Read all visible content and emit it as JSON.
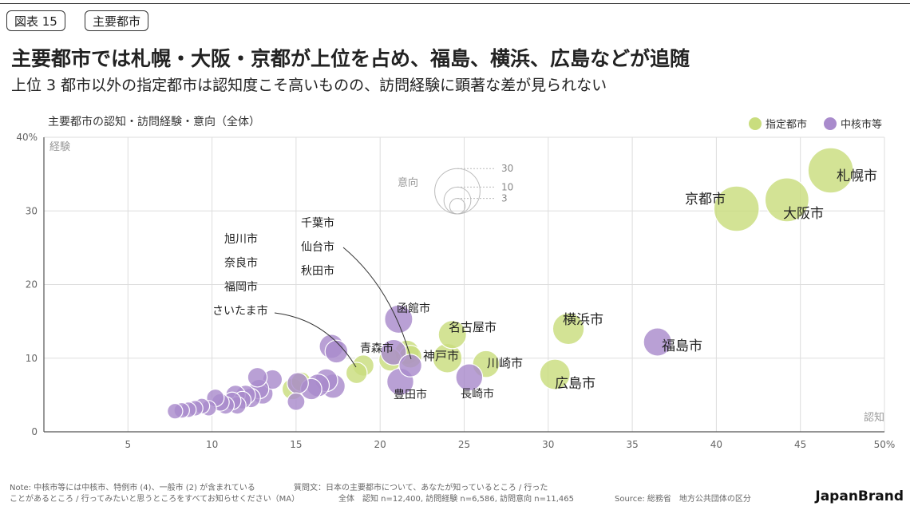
{
  "tags": {
    "figure": "図表 15",
    "section": "主要都市"
  },
  "title": "主要都市では札幌・大阪・京都が上位を占め、福島、横浜、広島などが追随",
  "subtitle": "上位 3 都市以外の指定都市は認知度こそ高いものの、訪問経験に顕著な差が見られない",
  "colors": {
    "designated": "#c9dd7e",
    "core": "#a98bcc",
    "grid": "#dddddd"
  },
  "chart_data": {
    "type": "scatter",
    "title": "主要都市の認知・訪問経験・意向（全体）",
    "xlabel": "認知",
    "ylabel": "経験",
    "size_label": "意向",
    "size_legend": [
      30,
      10,
      3
    ],
    "xlim": [
      0,
      50
    ],
    "ylim": [
      0,
      40
    ],
    "x_ticks": [
      "5",
      "10",
      "15",
      "20",
      "25",
      "30",
      "35",
      "40",
      "45",
      "50%"
    ],
    "y_ticks": [
      "0",
      "10",
      "20",
      "30",
      "40%"
    ],
    "grid": true,
    "legend_position": "top-right",
    "series": [
      {
        "name": "指定都市",
        "points": [
          {
            "label": "札幌市",
            "x": 46.8,
            "y": 35.5,
            "size": 30
          },
          {
            "label": "大阪市",
            "x": 44.2,
            "y": 31.5,
            "size": 28
          },
          {
            "label": "京都市",
            "x": 41.2,
            "y": 30.3,
            "size": 30
          },
          {
            "label": "横浜市",
            "x": 31.2,
            "y": 14.0,
            "size": 14
          },
          {
            "label": "広島市",
            "x": 30.4,
            "y": 7.8,
            "size": 13
          },
          {
            "label": "名古屋市",
            "x": 24.3,
            "y": 13.2,
            "size": 11
          },
          {
            "label": "川崎市",
            "x": 26.3,
            "y": 9.2,
            "size": 10
          },
          {
            "label": "神戸市",
            "x": 24.0,
            "y": 10.0,
            "size": 12
          },
          {
            "label": "千葉市",
            "x": 21.6,
            "y": 10.8,
            "size": 8
          },
          {
            "label": "仙台市",
            "x": 21.8,
            "y": 10.2,
            "size": 7
          },
          {
            "label": "",
            "x": 20.6,
            "y": 9.8,
            "size": 7
          },
          {
            "label": "",
            "x": 19.0,
            "y": 9.0,
            "size": 6
          },
          {
            "label": "",
            "x": 18.6,
            "y": 8.0,
            "size": 6
          },
          {
            "label": "",
            "x": 15.3,
            "y": 6.8,
            "size": 5
          },
          {
            "label": "",
            "x": 14.8,
            "y": 5.8,
            "size": 6
          }
        ]
      },
      {
        "name": "中核市等",
        "points": [
          {
            "label": "福島市",
            "x": 36.5,
            "y": 12.2,
            "size": 11
          },
          {
            "label": "函館市",
            "x": 21.1,
            "y": 15.3,
            "size": 11
          },
          {
            "label": "豊田市",
            "x": 21.2,
            "y": 6.8,
            "size": 10
          },
          {
            "label": "長崎市",
            "x": 25.3,
            "y": 7.4,
            "size": 10
          },
          {
            "label": "青森市",
            "x": 20.8,
            "y": 10.8,
            "size": 9
          },
          {
            "label": "秋田市",
            "x": 21.8,
            "y": 9.0,
            "size": 7
          },
          {
            "label": "旭川市",
            "x": 17.4,
            "y": 10.9,
            "size": 7
          },
          {
            "label": "奈良市",
            "x": 17.1,
            "y": 11.6,
            "size": 8
          },
          {
            "label": "",
            "x": 17.2,
            "y": 6.2,
            "size": 8
          },
          {
            "label": "",
            "x": 16.8,
            "y": 7.0,
            "size": 7
          },
          {
            "label": "",
            "x": 16.3,
            "y": 6.3,
            "size": 7
          },
          {
            "label": "",
            "x": 15.9,
            "y": 5.8,
            "size": 6
          },
          {
            "label": "",
            "x": 15.0,
            "y": 4.1,
            "size": 4
          },
          {
            "label": "",
            "x": 15.1,
            "y": 6.6,
            "size": 6
          },
          {
            "label": "",
            "x": 13.6,
            "y": 7.1,
            "size": 5
          },
          {
            "label": "",
            "x": 13.0,
            "y": 5.2,
            "size": 6
          },
          {
            "label": "",
            "x": 12.8,
            "y": 5.8,
            "size": 5
          },
          {
            "label": "",
            "x": 12.7,
            "y": 7.4,
            "size": 5
          },
          {
            "label": "",
            "x": 12.3,
            "y": 4.6,
            "size": 5
          },
          {
            "label": "",
            "x": 12.0,
            "y": 5.0,
            "size": 5
          },
          {
            "label": "",
            "x": 11.8,
            "y": 4.3,
            "size": 4
          },
          {
            "label": "",
            "x": 11.4,
            "y": 5.0,
            "size": 5
          },
          {
            "label": "",
            "x": 11.5,
            "y": 3.6,
            "size": 4
          },
          {
            "label": "",
            "x": 11.2,
            "y": 4.2,
            "size": 4
          },
          {
            "label": "",
            "x": 10.8,
            "y": 3.6,
            "size": 4
          },
          {
            "label": "",
            "x": 10.5,
            "y": 4.0,
            "size": 4
          },
          {
            "label": "",
            "x": 10.2,
            "y": 4.6,
            "size": 4
          },
          {
            "label": "",
            "x": 9.8,
            "y": 3.2,
            "size": 3
          },
          {
            "label": "",
            "x": 9.4,
            "y": 3.5,
            "size": 3
          },
          {
            "label": "",
            "x": 9.0,
            "y": 3.2,
            "size": 3
          },
          {
            "label": "",
            "x": 8.6,
            "y": 3.0,
            "size": 3
          },
          {
            "label": "",
            "x": 8.2,
            "y": 2.9,
            "size": 3
          },
          {
            "label": "",
            "x": 7.8,
            "y": 2.8,
            "size": 3
          }
        ]
      }
    ],
    "annotations": [
      {
        "lines": [
          "旭川市",
          "奈良市",
          "福岡市",
          "さいたま市"
        ]
      },
      {
        "lines": [
          "千葉市",
          "仙台市",
          "秋田市"
        ]
      }
    ]
  },
  "footer": {
    "note_line1": "Note: 中核市等には中核市、特例市 (4)、一般市 (2) が含まれている",
    "note_line2": "ことがあるところ / 行ってみたいと思うところをすべてお知らせください（MA）",
    "question_line1": "質問文：日本の主要都市について、あなたが知っているところ / 行った",
    "totals": "全体　認知 n=12,400, 訪問経験 n=6,586, 訪問意向 n=11,465",
    "source": "Source: 総務省　地方公共団体の区分",
    "brand": "JapanBrand"
  }
}
